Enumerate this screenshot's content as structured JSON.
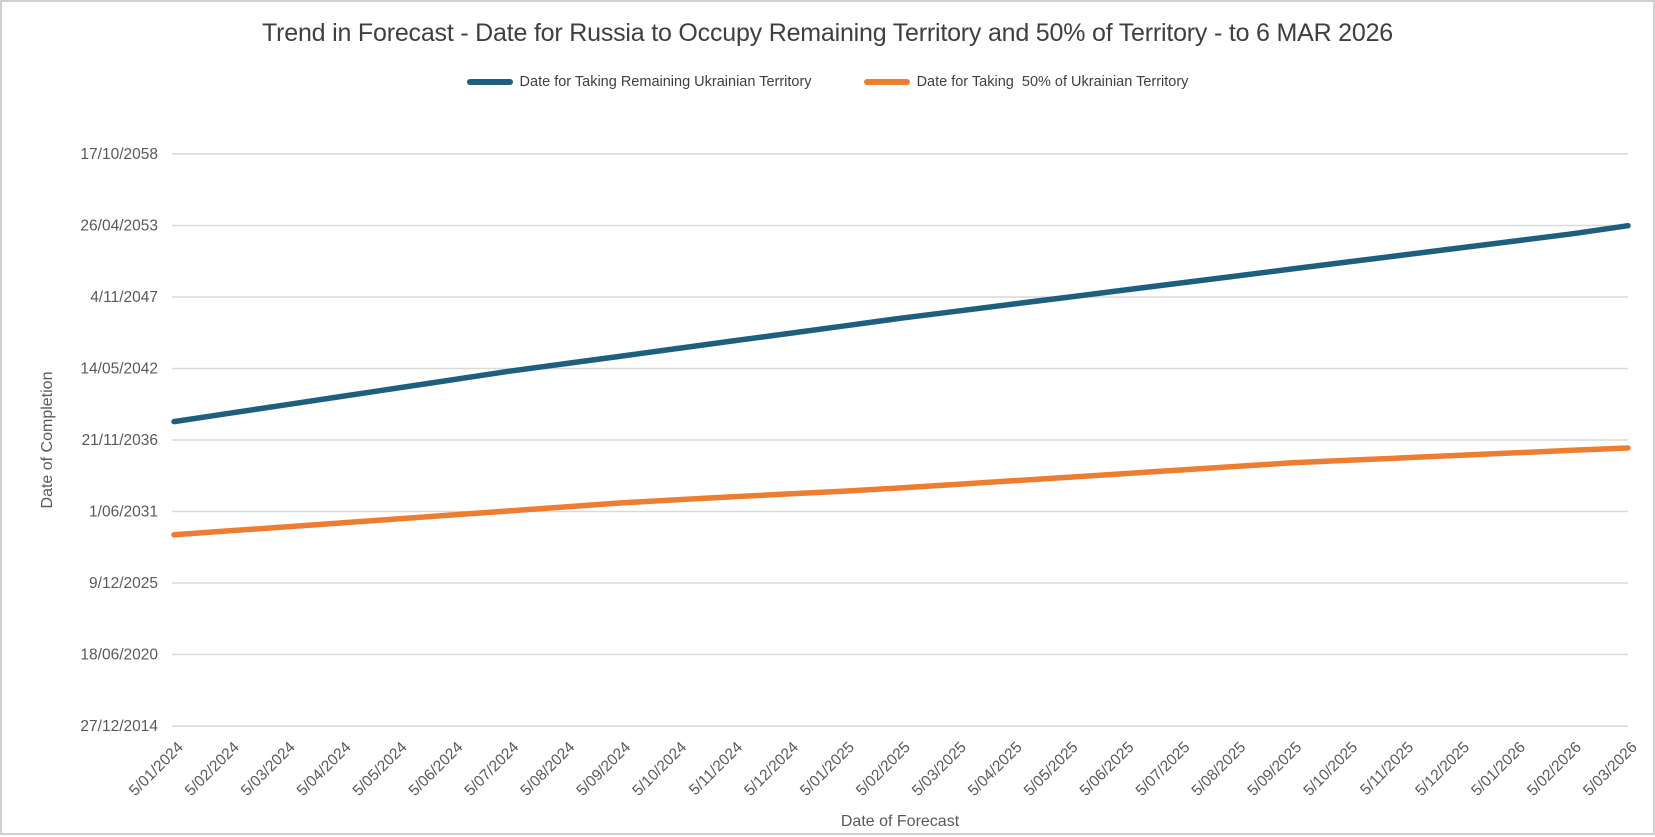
{
  "chart_data": {
    "type": "line",
    "title": "Trend in Forecast - Date for Russia to Occupy Remaining Territory and 50% of Territory - to 6 MAR 2026",
    "xlabel": "Date of Forecast",
    "ylabel": "Date of Completion",
    "grid": "horizontal",
    "legend_position": "top",
    "y_axis": {
      "min": "27/12/2014",
      "max": "17/10/2058",
      "major_unit_days": 2000
    },
    "y_tick_labels": [
      "17/10/2058",
      "26/04/2053",
      "4/11/2047",
      "14/05/2042",
      "21/11/2036",
      "1/06/2031",
      "9/12/2025",
      "18/06/2020",
      "27/12/2014"
    ],
    "x_tick_labels": [
      "5/01/2024",
      "5/02/2024",
      "5/03/2024",
      "5/04/2024",
      "5/05/2024",
      "5/06/2024",
      "5/07/2024",
      "5/08/2024",
      "5/09/2024",
      "5/10/2024",
      "5/11/2024",
      "5/12/2024",
      "5/01/2025",
      "5/02/2025",
      "5/03/2025",
      "5/04/2025",
      "5/05/2025",
      "5/06/2025",
      "5/07/2025",
      "5/08/2025",
      "5/09/2025",
      "5/10/2025",
      "5/11/2025",
      "5/12/2025",
      "5/01/2026",
      "5/02/2026",
      "5/03/2026"
    ],
    "series": [
      {
        "name": "Date for Taking Remaining Ukrainian Territory",
        "color": "#1e5f80",
        "values": [
          "21/04/2038",
          "12/12/2038",
          "3/08/2039",
          "25/03/2040",
          "14/11/2040",
          "8/07/2041",
          "27/02/2042",
          "27/09/2042",
          "27/04/2043",
          "25/11/2043",
          "24/06/2044",
          "20/01/2045",
          "21/08/2045",
          "21/03/2046",
          "4/10/2046",
          "19/04/2047",
          "2/11/2047",
          "17/05/2048",
          "29/11/2048",
          "14/06/2049",
          "28/12/2049",
          "13/07/2050",
          "24/01/2051",
          "9/08/2051",
          "21/02/2052",
          "5/09/2052",
          "20/04/2053"
        ]
      },
      {
        "name": "Date for Taking  50% of Ukrainian Territory",
        "color": "#ed7d31",
        "values": [
          "17/08/2029",
          "7/12/2029",
          "28/03/2030",
          "18/07/2030",
          "7/11/2030",
          "26/02/2031",
          "18/06/2031",
          "7/10/2031",
          "27/01/2032",
          "25/04/2032",
          "15/07/2032",
          "4/10/2032",
          "24/12/2032",
          "21/03/2033",
          "29/06/2033",
          "8/10/2033",
          "16/01/2034",
          "27/04/2034",
          "5/08/2034",
          "14/11/2034",
          "22/02/2035",
          "3/05/2035",
          "12/07/2035",
          "19/09/2035",
          "28/11/2035",
          "6/02/2036",
          "10/04/2036"
        ]
      }
    ]
  }
}
